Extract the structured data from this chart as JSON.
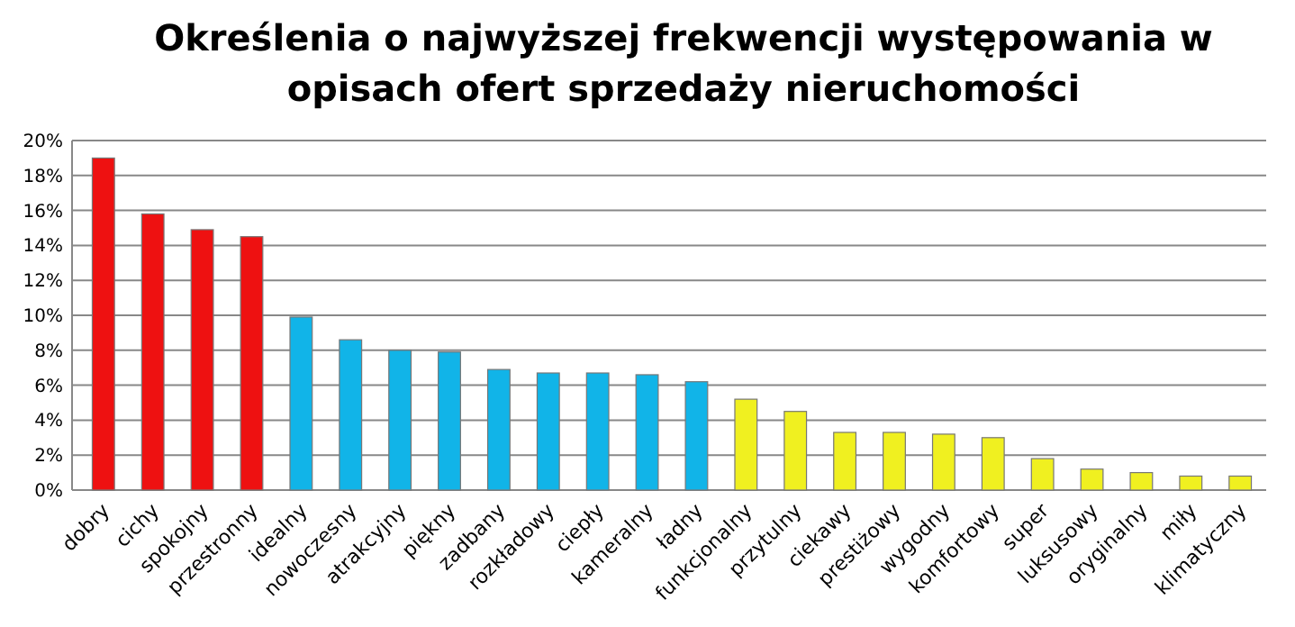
{
  "chart_data": {
    "type": "bar",
    "title": "Określenia o najwyższej frekwencji występowania w opisach ofert sprzedaży nieruchomości",
    "categories": [
      "dobry",
      "cichy",
      "spokojny",
      "przestronny",
      "idealny",
      "nowoczesny",
      "atrakcyjny",
      "piękny",
      "zadbany",
      "rozkładowy",
      "ciepły",
      "kameralny",
      "ładny",
      "funkcjonalny",
      "przytulny",
      "ciekawy",
      "prestiżowy",
      "wygodny",
      "komfortowy",
      "super",
      "luksusowy",
      "oryginalny",
      "miły",
      "klimatyczny"
    ],
    "values": [
      19.0,
      15.8,
      14.9,
      14.5,
      9.9,
      8.6,
      8.0,
      7.9,
      6.9,
      6.7,
      6.7,
      6.6,
      6.2,
      5.2,
      4.5,
      3.3,
      3.3,
      3.2,
      3.0,
      1.8,
      1.2,
      1.0,
      0.8,
      0.8
    ],
    "colors": [
      "#ee1111",
      "#ee1111",
      "#ee1111",
      "#ee1111",
      "#11b4e8",
      "#11b4e8",
      "#11b4e8",
      "#11b4e8",
      "#11b4e8",
      "#11b4e8",
      "#11b4e8",
      "#11b4e8",
      "#11b4e8",
      "#f0f020",
      "#f0f020",
      "#f0f020",
      "#f0f020",
      "#f0f020",
      "#f0f020",
      "#f0f020",
      "#f0f020",
      "#f0f020",
      "#f0f020",
      "#f0f020"
    ],
    "ylim": [
      0,
      20
    ],
    "yticks": [
      {
        "value": 0,
        "label": "0%"
      },
      {
        "value": 2,
        "label": "2%"
      },
      {
        "value": 4,
        "label": "4%"
      },
      {
        "value": 6,
        "label": "6%"
      },
      {
        "value": 8,
        "label": "8%"
      },
      {
        "value": 10,
        "label": "10%"
      },
      {
        "value": 12,
        "label": "12%"
      },
      {
        "value": 14,
        "label": "14%"
      },
      {
        "value": 16,
        "label": "16%"
      },
      {
        "value": 18,
        "label": "18%"
      },
      {
        "value": 20,
        "label": "20%"
      }
    ],
    "grid": "y"
  }
}
